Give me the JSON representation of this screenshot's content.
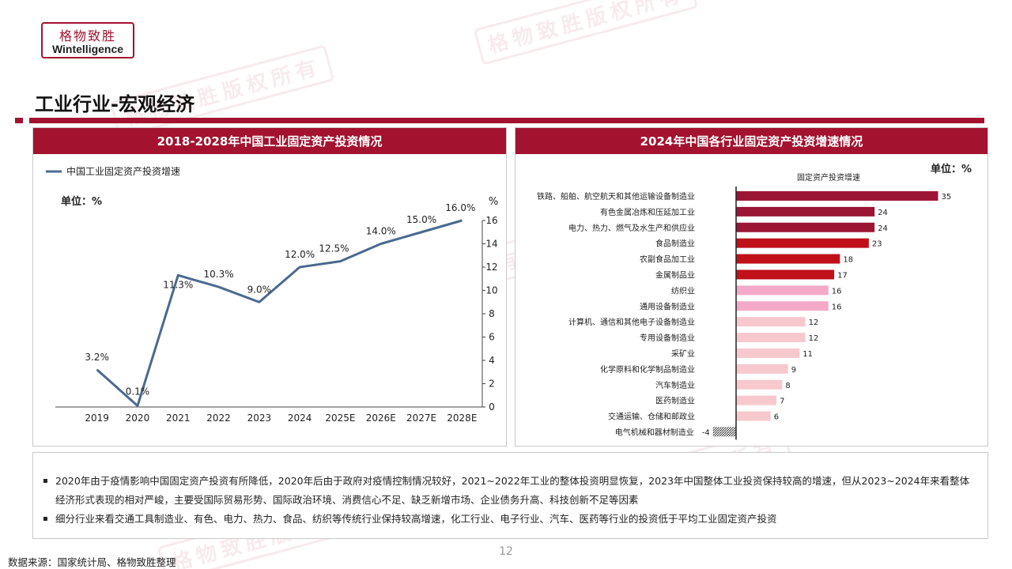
{
  "logo": {
    "cn": "格物致胜",
    "en": "Wintelligence"
  },
  "page_title": "工业行业-宏观经济",
  "watermark": "格物致胜版权所有",
  "left_panel": {
    "header": "2018-2028年中国工业固定资产投资情况",
    "legend": "中国工业固定资产投资增速",
    "unit": "单位：%",
    "axis_unit": "%"
  },
  "right_panel": {
    "header": "2024年中国各行业固定资产投资增速情况",
    "unit": "单位：%",
    "series_title": "固定资产投资增速"
  },
  "notes": [
    "2020年由于疫情影响中国固定资产投资有所降低，2020年后由于政府对疫情控制情况较好，2021~2022年工业的整体投资明显恢复，2023年中国整体工业投资保持较高的增速，但从2023~2024年来看整体经济形式表现的相对严峻，主要受国际贸易形势、国际政治环境、消费信心不足、缺乏新增市场、企业债务升高、科技创新不足等因素",
    "细分行业来看交通工具制造业、有色、电力、热力、食品、纺织等传统行业保持较高增速，化工行业、电子行业、汽车、医药等行业的投资低于平均工业固定资产投资"
  ],
  "page_number": "12",
  "source": "数据来源：国家统计局、格物致胜整理",
  "colors": {
    "brand": "#a3122f",
    "line": "#4a6a8f"
  },
  "chart_data": [
    {
      "type": "line",
      "title": "2018-2028年中国工业固定资产投资情况",
      "x": [
        "2019",
        "2020",
        "2021",
        "2022",
        "2023",
        "2024",
        "2025E",
        "2026E",
        "2027E",
        "2028E"
      ],
      "series": [
        {
          "name": "中国工业固定资产投资增速",
          "values": [
            3.2,
            0.1,
            11.3,
            10.3,
            9.0,
            12.0,
            12.5,
            14.0,
            15.0,
            16.0
          ]
        }
      ],
      "value_labels": [
        "3.2%",
        "0.1%",
        "11.3%",
        "10.3%",
        "9.0%",
        "12.0%",
        "12.5%",
        "14.0%",
        "15.0%",
        "16.0%"
      ],
      "y_ticks": [
        "0",
        "2",
        "4",
        "6",
        "8",
        "10",
        "12",
        "14",
        "16"
      ],
      "ylim": [
        0,
        16
      ],
      "yaxis_position": "right",
      "legend_position": "top-left"
    },
    {
      "type": "bar",
      "orientation": "horizontal",
      "title": "2024年中国各行业固定资产投资增速情况",
      "categories": [
        "铁路、船舶、航空航天和其他运输设备制造业",
        "有色金属冶炼和压延加工业",
        "电力、热力、燃气及水生产和供应业",
        "食品制造业",
        "农副食品加工业",
        "金属制品业",
        "纺织业",
        "通用设备制造业",
        "计算机、通信和其他电子设备制造业",
        "专用设备制造业",
        "采矿业",
        "化学原料和化学制品制造业",
        "汽车制造业",
        "医药制造业",
        "交通运输、仓储和邮政业",
        "电气机械和器材制造业"
      ],
      "series": [
        {
          "name": "固定资产投资增速",
          "values": [
            35,
            24,
            24,
            23,
            18,
            17,
            16,
            16,
            12,
            12,
            11,
            9,
            8,
            7,
            6,
            -4
          ]
        }
      ],
      "bar_colors": [
        "#9b1535",
        "#9b1535",
        "#9b1535",
        "#c0101a",
        "#c0101a",
        "#c0101a",
        "#f4a9c8",
        "#f4a9c8",
        "#f7c9cf",
        "#f7c9cf",
        "#f7c9cf",
        "#f7c9cf",
        "#f7c9cf",
        "#f7c9cf",
        "#f7c9cf",
        "hatched"
      ]
    }
  ]
}
